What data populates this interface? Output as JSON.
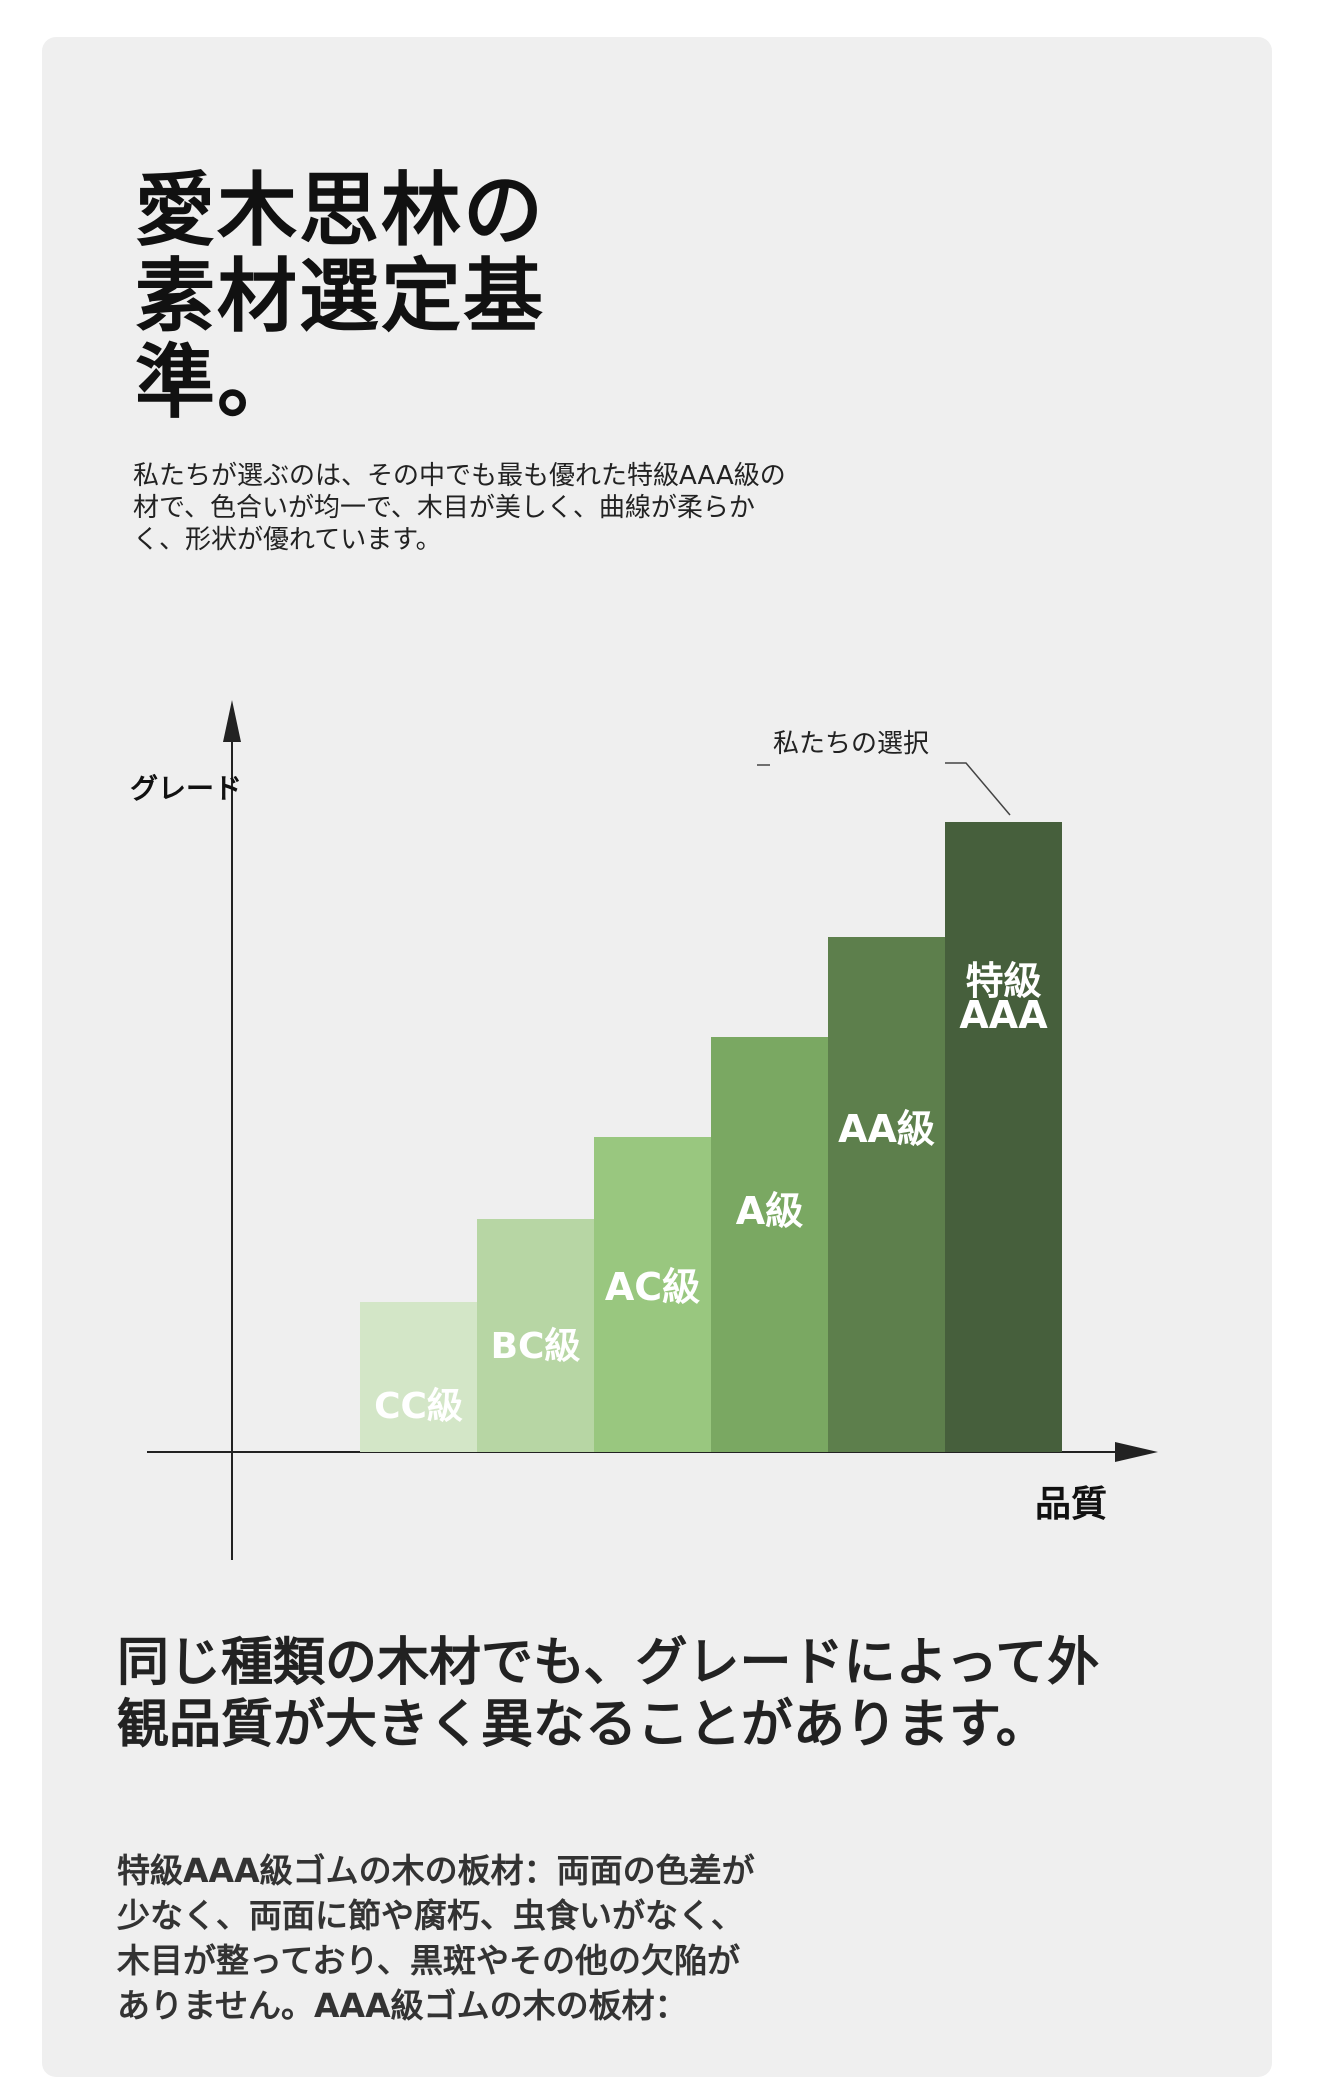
{
  "heading": {
    "title": "愛木思林の\n素材選定基\n準。",
    "intro": "私たちが選ぶのは、その中でも最も優れた特級AAA級の\n材で、色合いが均一で、木目が美しく、曲線が柔らか\nく、形状が優れています。"
  },
  "chart_data": {
    "type": "bar",
    "ylabel": "グレード",
    "xlabel": "品質",
    "annotation": "私たちの選択",
    "categories": [
      "CC級",
      "BC級",
      "AC級",
      "A級",
      "AA級",
      "特級\nAAA"
    ],
    "values": [
      1,
      2,
      3,
      4,
      5,
      6
    ],
    "colors": [
      "#d3e6c7",
      "#b7d6a4",
      "#99c77f",
      "#7aa862",
      "#5d7f4c",
      "#465f3c"
    ],
    "ylim": [
      0,
      7
    ],
    "grid": false
  },
  "section": {
    "heading": "同じ種類の木材でも、グレードによって外\n観品質が大きく異なることがあります。",
    "body": "特級AAA級ゴムの木の板材：両面の色差が\n少なく、両面に節や腐朽、虫食いがなく、\n木目が整っており、黒斑やその他の欠陥が\nありません。AAA級ゴムの木の板材："
  }
}
